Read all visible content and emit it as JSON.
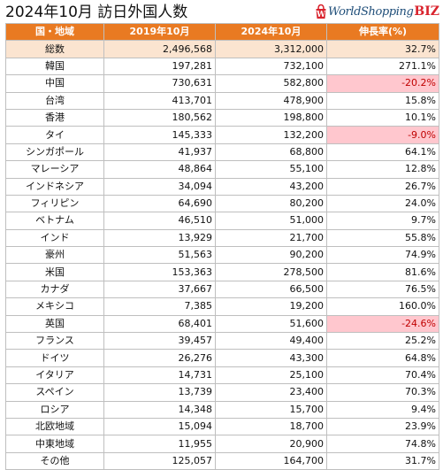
{
  "title": "2024年10月 訪日外国人数",
  "logo": {
    "text": "WorldShopping",
    "biz": "BIZ",
    "icon": "shopping-bag-icon",
    "accent": "#d9232d"
  },
  "colors": {
    "header_bg": "#e97a22",
    "header_text": "#ffffff",
    "total_row_bg": "#fbe4d0",
    "negative_bg": "#ffc7ce",
    "negative_text": "#c00000"
  },
  "table": {
    "headers": [
      "国・地域",
      "2019年10月",
      "2024年10月",
      "伸長率(%)"
    ],
    "rows": [
      {
        "name": "総数",
        "y2019": "2,496,568",
        "y2024": "3,312,000",
        "growth": "32.7%",
        "total": true
      },
      {
        "name": "韓国",
        "y2019": "197,281",
        "y2024": "732,100",
        "growth": "271.1%"
      },
      {
        "name": "中国",
        "y2019": "730,631",
        "y2024": "582,800",
        "growth": "-20.2%",
        "negative": true
      },
      {
        "name": "台湾",
        "y2019": "413,701",
        "y2024": "478,900",
        "growth": "15.8%"
      },
      {
        "name": "香港",
        "y2019": "180,562",
        "y2024": "198,800",
        "growth": "10.1%"
      },
      {
        "name": "タイ",
        "y2019": "145,333",
        "y2024": "132,200",
        "growth": "-9.0%",
        "negative": true
      },
      {
        "name": "シンガポール",
        "y2019": "41,937",
        "y2024": "68,800",
        "growth": "64.1%"
      },
      {
        "name": "マレーシア",
        "y2019": "48,864",
        "y2024": "55,100",
        "growth": "12.8%"
      },
      {
        "name": "インドネシア",
        "y2019": "34,094",
        "y2024": "43,200",
        "growth": "26.7%"
      },
      {
        "name": "フィリピン",
        "y2019": "64,690",
        "y2024": "80,200",
        "growth": "24.0%"
      },
      {
        "name": "ベトナム",
        "y2019": "46,510",
        "y2024": "51,000",
        "growth": "9.7%"
      },
      {
        "name": "インド",
        "y2019": "13,929",
        "y2024": "21,700",
        "growth": "55.8%"
      },
      {
        "name": "豪州",
        "y2019": "51,563",
        "y2024": "90,200",
        "growth": "74.9%"
      },
      {
        "name": "米国",
        "y2019": "153,363",
        "y2024": "278,500",
        "growth": "81.6%"
      },
      {
        "name": "カナダ",
        "y2019": "37,667",
        "y2024": "66,500",
        "growth": "76.5%"
      },
      {
        "name": "メキシコ",
        "y2019": "7,385",
        "y2024": "19,200",
        "growth": "160.0%"
      },
      {
        "name": "英国",
        "y2019": "68,401",
        "y2024": "51,600",
        "growth": "-24.6%",
        "negative": true
      },
      {
        "name": "フランス",
        "y2019": "39,457",
        "y2024": "49,400",
        "growth": "25.2%"
      },
      {
        "name": "ドイツ",
        "y2019": "26,276",
        "y2024": "43,300",
        "growth": "64.8%"
      },
      {
        "name": "イタリア",
        "y2019": "14,731",
        "y2024": "25,100",
        "growth": "70.4%"
      },
      {
        "name": "スペイン",
        "y2019": "13,739",
        "y2024": "23,400",
        "growth": "70.3%"
      },
      {
        "name": "ロシア",
        "y2019": "14,348",
        "y2024": "15,700",
        "growth": "9.4%"
      },
      {
        "name": "北欧地域",
        "y2019": "15,094",
        "y2024": "18,700",
        "growth": "23.9%"
      },
      {
        "name": "中東地域",
        "y2019": "11,955",
        "y2024": "20,900",
        "growth": "74.8%"
      },
      {
        "name": "その他",
        "y2019": "125,057",
        "y2024": "164,700",
        "growth": "31.7%"
      }
    ]
  }
}
